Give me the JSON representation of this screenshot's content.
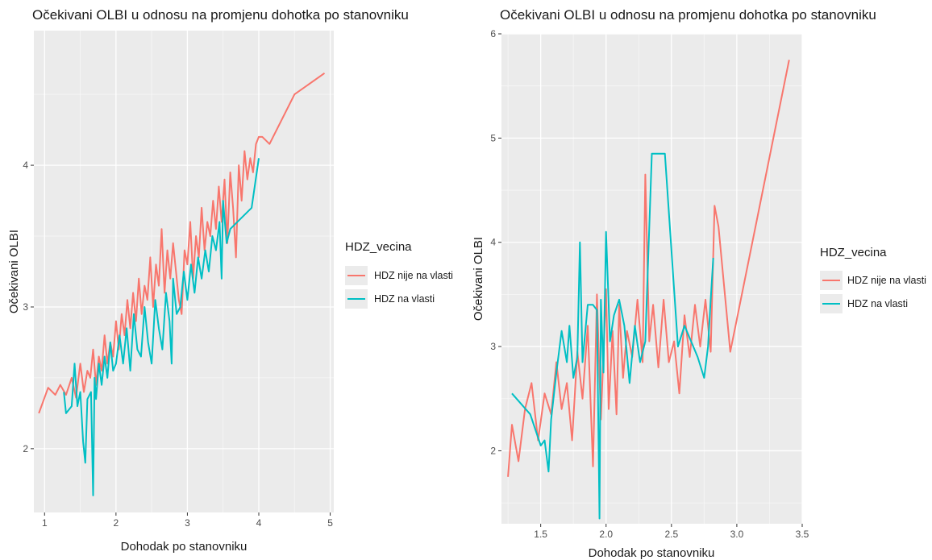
{
  "chart_data": [
    {
      "type": "line",
      "title": "Očekivani OLBI u odnosu na promjenu dohotka po stanovniku",
      "xlabel": "Dohodak po stanovniku",
      "ylabel": "Očekivani OLBI",
      "xlim": [
        0.85,
        5.05
      ],
      "ylim": [
        1.55,
        4.95
      ],
      "xticks": [
        1,
        2,
        3,
        4,
        5
      ],
      "xtick_labels": [
        "1",
        "2",
        "3",
        "4",
        "5"
      ],
      "yticks": [
        2,
        3,
        4
      ],
      "ytick_labels": [
        "2",
        "3",
        "4"
      ],
      "grid": true,
      "legend": {
        "title": "HDZ_vecina",
        "position": "right"
      },
      "series": [
        {
          "name": "HDZ nije na vlasti",
          "color": "#F8766D",
          "x": [
            0.92,
            1.05,
            1.15,
            1.22,
            1.3,
            1.38,
            1.44,
            1.5,
            1.55,
            1.6,
            1.64,
            1.68,
            1.72,
            1.76,
            1.8,
            1.84,
            1.88,
            1.92,
            1.96,
            2.0,
            2.04,
            2.08,
            2.12,
            2.16,
            2.2,
            2.24,
            2.28,
            2.32,
            2.36,
            2.4,
            2.44,
            2.48,
            2.52,
            2.56,
            2.6,
            2.64,
            2.68,
            2.72,
            2.76,
            2.8,
            2.84,
            2.88,
            2.92,
            2.96,
            3.0,
            3.04,
            3.08,
            3.12,
            3.16,
            3.2,
            3.24,
            3.28,
            3.32,
            3.36,
            3.4,
            3.44,
            3.48,
            3.52,
            3.56,
            3.6,
            3.64,
            3.68,
            3.72,
            3.76,
            3.8,
            3.84,
            3.88,
            3.92,
            3.96,
            4.0,
            4.05,
            4.15,
            4.5,
            4.92
          ],
          "y": [
            2.25,
            2.43,
            2.38,
            2.45,
            2.38,
            2.5,
            2.36,
            2.6,
            2.4,
            2.55,
            2.5,
            2.7,
            2.45,
            2.65,
            2.55,
            2.8,
            2.6,
            2.75,
            2.65,
            2.9,
            2.7,
            2.95,
            2.8,
            3.05,
            2.85,
            3.1,
            2.9,
            3.2,
            2.95,
            3.15,
            3.05,
            3.35,
            3.0,
            3.3,
            3.15,
            3.55,
            3.1,
            3.4,
            3.2,
            3.45,
            3.25,
            3.05,
            2.95,
            3.4,
            3.3,
            3.6,
            3.2,
            3.5,
            3.35,
            3.7,
            3.4,
            3.6,
            3.5,
            3.75,
            3.55,
            3.85,
            3.6,
            3.9,
            3.45,
            3.95,
            3.7,
            3.35,
            4.0,
            3.75,
            4.1,
            3.9,
            4.05,
            3.95,
            4.15,
            4.2,
            4.2,
            4.15,
            4.5,
            4.65
          ]
        },
        {
          "name": "HDZ na vlasti",
          "color": "#00BFC4",
          "x": [
            1.27,
            1.3,
            1.38,
            1.42,
            1.46,
            1.5,
            1.54,
            1.57,
            1.6,
            1.65,
            1.68,
            1.7,
            1.72,
            1.76,
            1.8,
            1.84,
            1.88,
            1.92,
            1.96,
            2.0,
            2.05,
            2.1,
            2.15,
            2.2,
            2.25,
            2.3,
            2.35,
            2.4,
            2.45,
            2.5,
            2.55,
            2.6,
            2.65,
            2.7,
            2.75,
            2.78,
            2.8,
            2.85,
            2.9,
            2.95,
            3.0,
            3.05,
            3.1,
            3.15,
            3.2,
            3.25,
            3.3,
            3.35,
            3.4,
            3.45,
            3.48,
            3.5,
            3.55,
            3.6,
            3.7,
            3.9,
            4.0
          ],
          "y": [
            2.4,
            2.25,
            2.3,
            2.6,
            2.3,
            2.4,
            2.05,
            1.9,
            2.35,
            2.4,
            1.67,
            2.5,
            2.35,
            2.6,
            2.45,
            2.65,
            2.5,
            2.75,
            2.55,
            2.6,
            2.8,
            2.6,
            2.85,
            2.55,
            2.95,
            2.7,
            2.65,
            3.0,
            2.75,
            2.6,
            3.05,
            2.85,
            2.7,
            3.1,
            2.9,
            2.6,
            3.2,
            2.95,
            3.0,
            3.25,
            3.05,
            3.3,
            3.1,
            3.35,
            3.2,
            3.4,
            3.25,
            3.5,
            3.4,
            3.6,
            3.2,
            3.75,
            3.45,
            3.55,
            3.6,
            3.7,
            4.05
          ]
        }
      ]
    },
    {
      "type": "line",
      "title": "Očekivani OLBI u odnosu na promjenu dohotka po stanovniku",
      "xlabel": "Dohodak po stanovniku",
      "ylabel": "Očekivani OLBI",
      "xlim": [
        1.2,
        3.5
      ],
      "ylim": [
        1.3,
        6.0
      ],
      "xticks": [
        1.5,
        2.0,
        2.5,
        3.0,
        3.5
      ],
      "xtick_labels": [
        "1.5",
        "2.0",
        "2.5",
        "3.0",
        "3.5"
      ],
      "yticks": [
        2,
        3,
        4,
        5,
        6
      ],
      "ytick_labels": [
        "2",
        "3",
        "4",
        "5",
        "6"
      ],
      "grid": true,
      "legend": {
        "title": "HDZ_vecina",
        "position": "right"
      },
      "series": [
        {
          "name": "HDZ nije na vlasti",
          "color": "#F8766D",
          "x": [
            1.25,
            1.28,
            1.33,
            1.38,
            1.43,
            1.48,
            1.53,
            1.58,
            1.62,
            1.66,
            1.7,
            1.74,
            1.78,
            1.82,
            1.86,
            1.9,
            1.93,
            1.96,
            2.0,
            2.02,
            2.05,
            2.08,
            2.1,
            2.13,
            2.16,
            2.2,
            2.24,
            2.28,
            2.3,
            2.33,
            2.36,
            2.4,
            2.44,
            2.48,
            2.52,
            2.56,
            2.6,
            2.64,
            2.68,
            2.72,
            2.76,
            2.8,
            2.83,
            2.86,
            2.95,
            3.4
          ],
          "y": [
            1.75,
            2.25,
            1.9,
            2.4,
            2.65,
            2.1,
            2.55,
            2.35,
            2.85,
            2.4,
            2.65,
            2.1,
            2.95,
            2.5,
            3.2,
            1.85,
            3.5,
            2.3,
            3.55,
            2.4,
            3.15,
            2.35,
            3.4,
            2.7,
            3.15,
            2.9,
            3.45,
            2.85,
            4.65,
            3.05,
            3.4,
            2.8,
            3.45,
            2.85,
            3.05,
            2.55,
            3.3,
            2.9,
            3.4,
            3.0,
            3.45,
            2.95,
            4.35,
            4.15,
            2.95,
            5.75
          ]
        },
        {
          "name": "HDZ na vlasti",
          "color": "#00BFC4",
          "x": [
            1.28,
            1.42,
            1.5,
            1.53,
            1.56,
            1.58,
            1.62,
            1.66,
            1.7,
            1.72,
            1.75,
            1.78,
            1.8,
            1.82,
            1.86,
            1.9,
            1.93,
            1.95,
            1.96,
            1.98,
            2.0,
            2.03,
            2.06,
            2.1,
            2.14,
            2.18,
            2.22,
            2.26,
            2.3,
            2.35,
            2.45,
            2.55,
            2.6,
            2.65,
            2.7,
            2.75,
            2.78,
            2.8,
            2.82
          ],
          "y": [
            2.55,
            2.35,
            2.05,
            2.1,
            1.8,
            2.3,
            2.75,
            3.15,
            2.85,
            3.2,
            2.7,
            2.9,
            4.0,
            2.85,
            3.4,
            3.4,
            3.35,
            1.35,
            3.45,
            2.75,
            4.1,
            3.05,
            3.3,
            3.45,
            3.2,
            2.65,
            3.2,
            2.85,
            3.05,
            4.85,
            4.85,
            3.0,
            3.2,
            3.05,
            2.9,
            2.7,
            3.0,
            3.45,
            3.85
          ]
        }
      ]
    }
  ]
}
